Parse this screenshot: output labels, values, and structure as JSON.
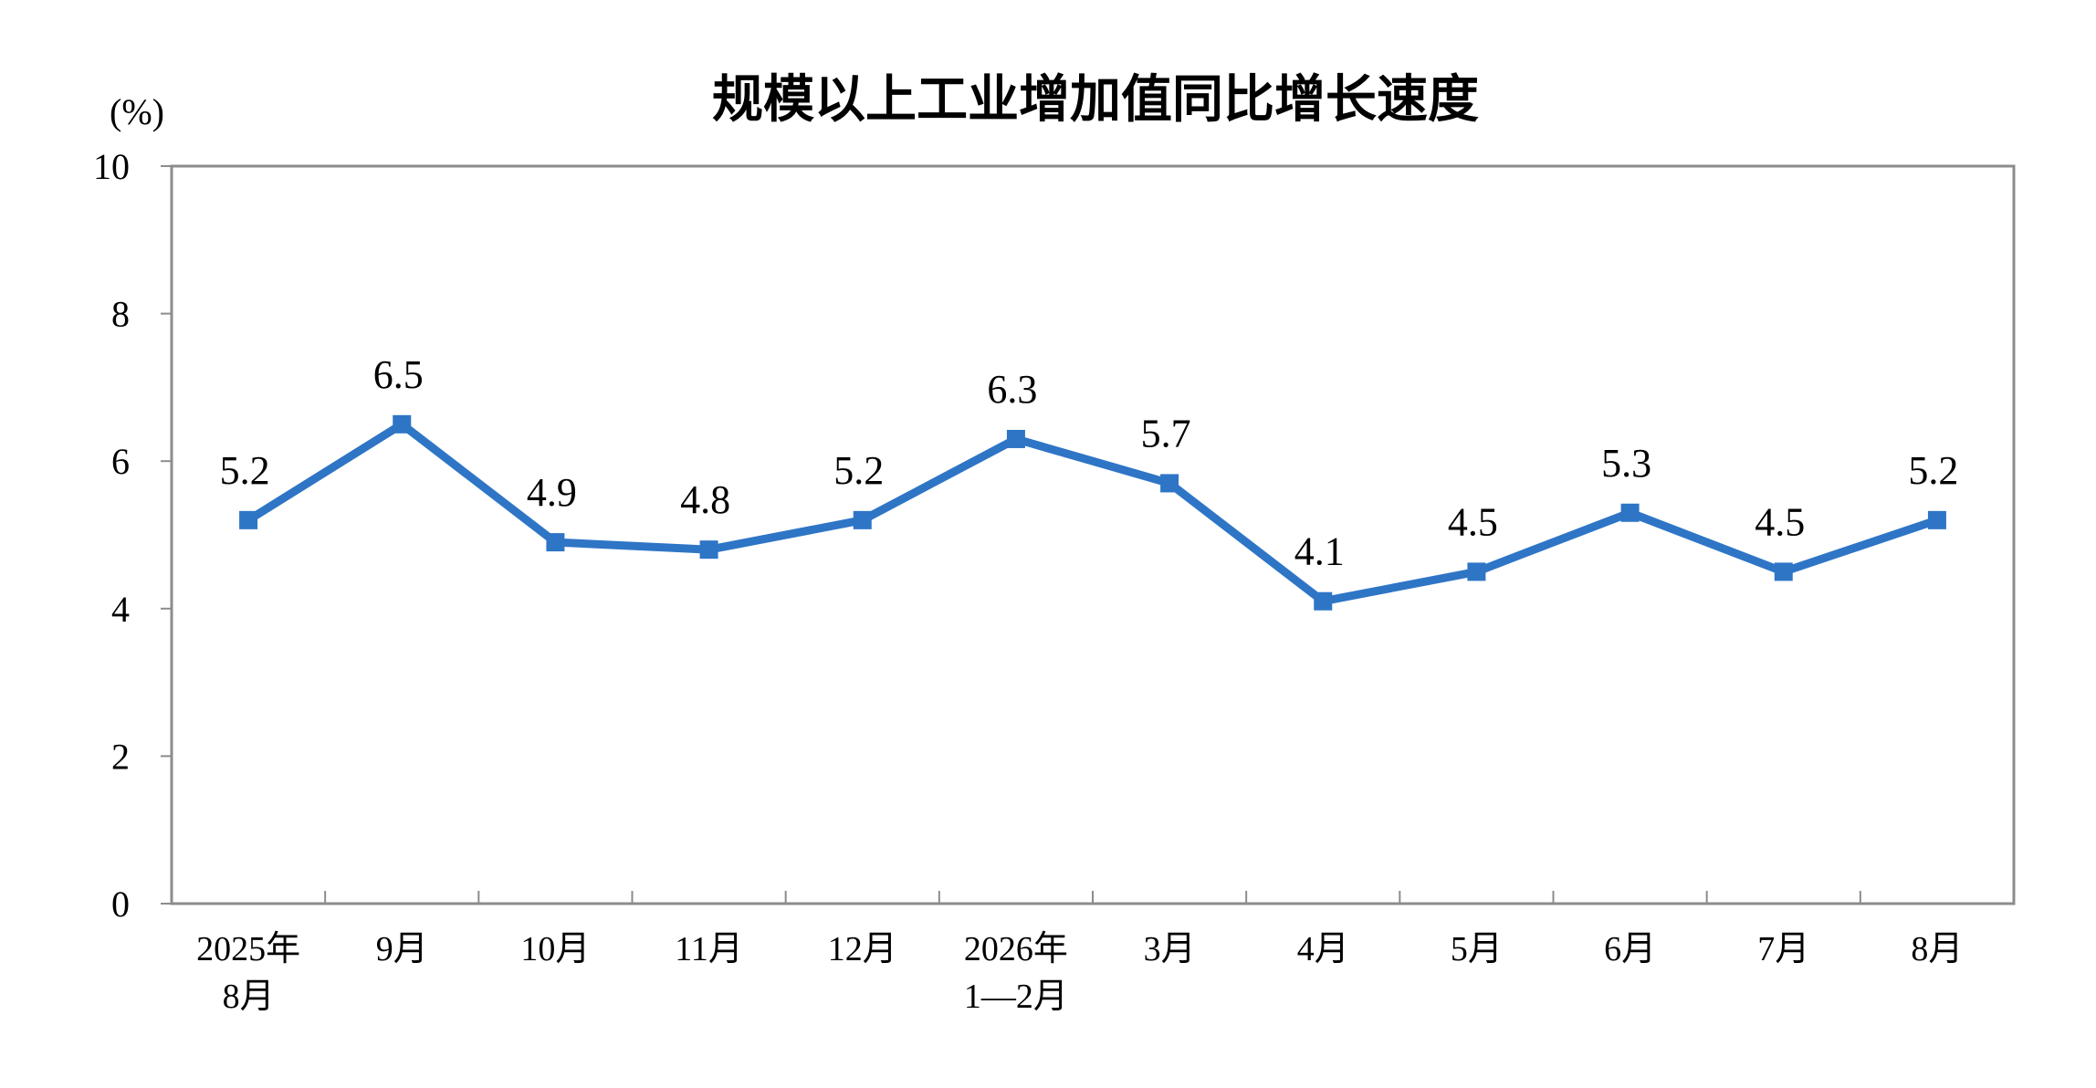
{
  "chart_data": {
    "type": "line",
    "title": "规模以上工业增加值同比增长速度",
    "ylabel": "(%)",
    "xlabel": "",
    "ylim": [
      0,
      10
    ],
    "yticks": [
      0,
      2,
      4,
      6,
      8,
      10
    ],
    "grid": false,
    "categories": [
      [
        "2025年",
        "8月"
      ],
      [
        "9月"
      ],
      [
        "10月"
      ],
      [
        "11月"
      ],
      [
        "12月"
      ],
      [
        "2026年",
        "1—2月"
      ],
      [
        "3月"
      ],
      [
        "4月"
      ],
      [
        "5月"
      ],
      [
        "6月"
      ],
      [
        "7月"
      ],
      [
        "8月"
      ]
    ],
    "series": [
      {
        "values": [
          5.2,
          6.5,
          4.9,
          4.8,
          5.2,
          6.3,
          5.7,
          4.1,
          4.5,
          5.3,
          4.5,
          5.2
        ],
        "labels": [
          "5.2",
          "6.5",
          "4.9",
          "4.8",
          "5.2",
          "6.3",
          "5.7",
          "4.1",
          "4.5",
          "5.3",
          "4.5",
          "5.2"
        ],
        "color": "#2E75C6"
      }
    ],
    "axis_color": "#8c8c8c"
  }
}
